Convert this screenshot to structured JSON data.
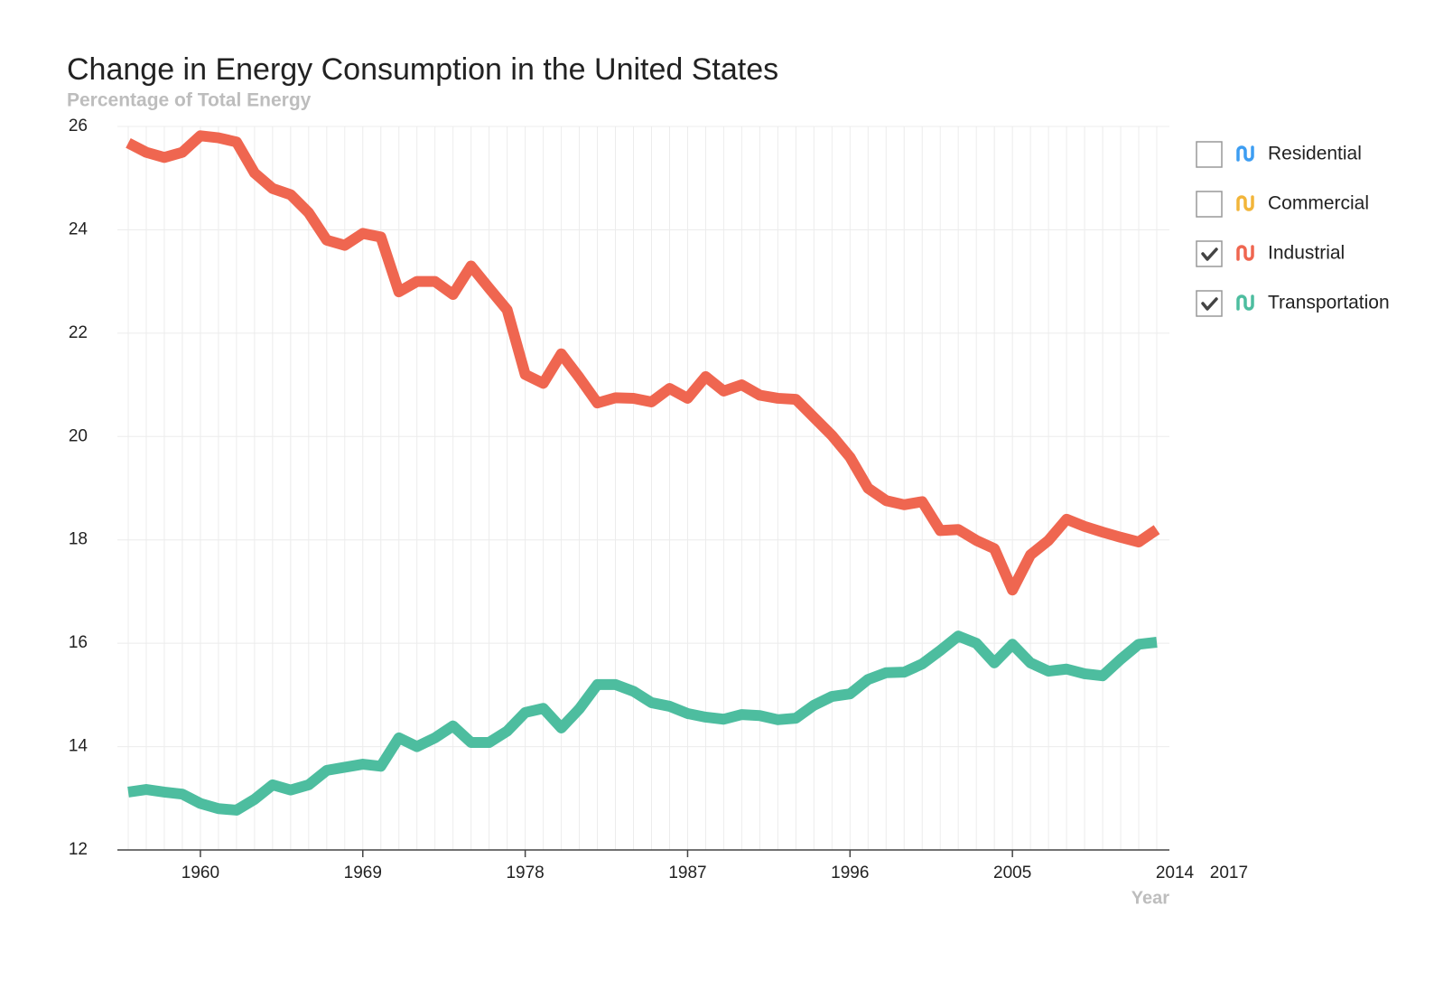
{
  "chart_data": {
    "type": "line",
    "title": "Change in Energy Consumption in the United States",
    "y_label": "Percentage of Total Energy",
    "x_label": "Year",
    "x": [
      1956,
      1957,
      1958,
      1959,
      1960,
      1961,
      1962,
      1963,
      1964,
      1965,
      1966,
      1967,
      1968,
      1969,
      1970,
      1971,
      1972,
      1973,
      1974,
      1975,
      1976,
      1977,
      1978,
      1979,
      1980,
      1981,
      1982,
      1983,
      1984,
      1985,
      1986,
      1987,
      1988,
      1989,
      1990,
      1991,
      1992,
      1993,
      1994,
      1995,
      1996,
      1997,
      1998,
      1999,
      2000,
      2001,
      2002,
      2003,
      2004,
      2005,
      2006,
      2007,
      2008,
      2009,
      2010,
      2011,
      2012,
      2013
    ],
    "series": [
      {
        "name": "Industrial",
        "color": "#ef6650",
        "values": [
          25.68,
          25.5,
          25.4,
          25.5,
          25.82,
          25.78,
          25.7,
          25.1,
          24.8,
          24.68,
          24.33,
          23.8,
          23.7,
          23.93,
          23.86,
          22.8,
          23.0,
          23.0,
          22.75,
          23.3,
          22.87,
          22.45,
          21.2,
          21.03,
          21.6,
          21.14,
          20.65,
          20.75,
          20.74,
          20.67,
          20.93,
          20.74,
          21.16,
          20.88,
          21.0,
          20.8,
          20.74,
          20.72,
          20.37,
          20.02,
          19.6,
          19.0,
          18.76,
          18.68,
          18.74,
          18.18,
          18.2,
          17.99,
          17.83,
          17.03,
          17.71,
          17.99,
          18.4,
          18.26,
          18.15,
          18.05,
          17.96,
          18.2
        ]
      },
      {
        "name": "Transportation",
        "color": "#4dbd9f",
        "values": [
          13.12,
          13.17,
          13.12,
          13.08,
          12.9,
          12.8,
          12.77,
          12.98,
          13.26,
          13.16,
          13.26,
          13.54,
          13.6,
          13.66,
          13.62,
          14.17,
          14.0,
          14.17,
          14.4,
          14.08,
          14.08,
          14.3,
          14.66,
          14.74,
          14.36,
          14.73,
          15.2,
          15.2,
          15.07,
          14.85,
          14.78,
          14.64,
          14.57,
          14.53,
          14.62,
          14.6,
          14.52,
          14.55,
          14.8,
          14.97,
          15.02,
          15.3,
          15.43,
          15.44,
          15.6,
          15.86,
          16.14,
          16.0,
          15.62,
          15.98,
          15.62,
          15.46,
          15.5,
          15.41,
          15.37,
          15.69,
          15.98,
          16.02
        ]
      }
    ],
    "legend": [
      {
        "name": "Residential",
        "color": "#3d9df2",
        "checked": false
      },
      {
        "name": "Commercial",
        "color": "#f2b53a",
        "checked": false
      },
      {
        "name": "Industrial",
        "color": "#ef6650",
        "checked": true
      },
      {
        "name": "Transportation",
        "color": "#4dbd9f",
        "checked": true
      }
    ],
    "xlim": [
      1955.4,
      2013.7
    ],
    "xticks": [
      1960,
      1969,
      1978,
      1987,
      1996,
      2005,
      2014,
      2017
    ],
    "ylim": [
      12,
      26
    ],
    "yticks": [
      12,
      14,
      16,
      18,
      20,
      22,
      24,
      26
    ],
    "grid": true
  }
}
